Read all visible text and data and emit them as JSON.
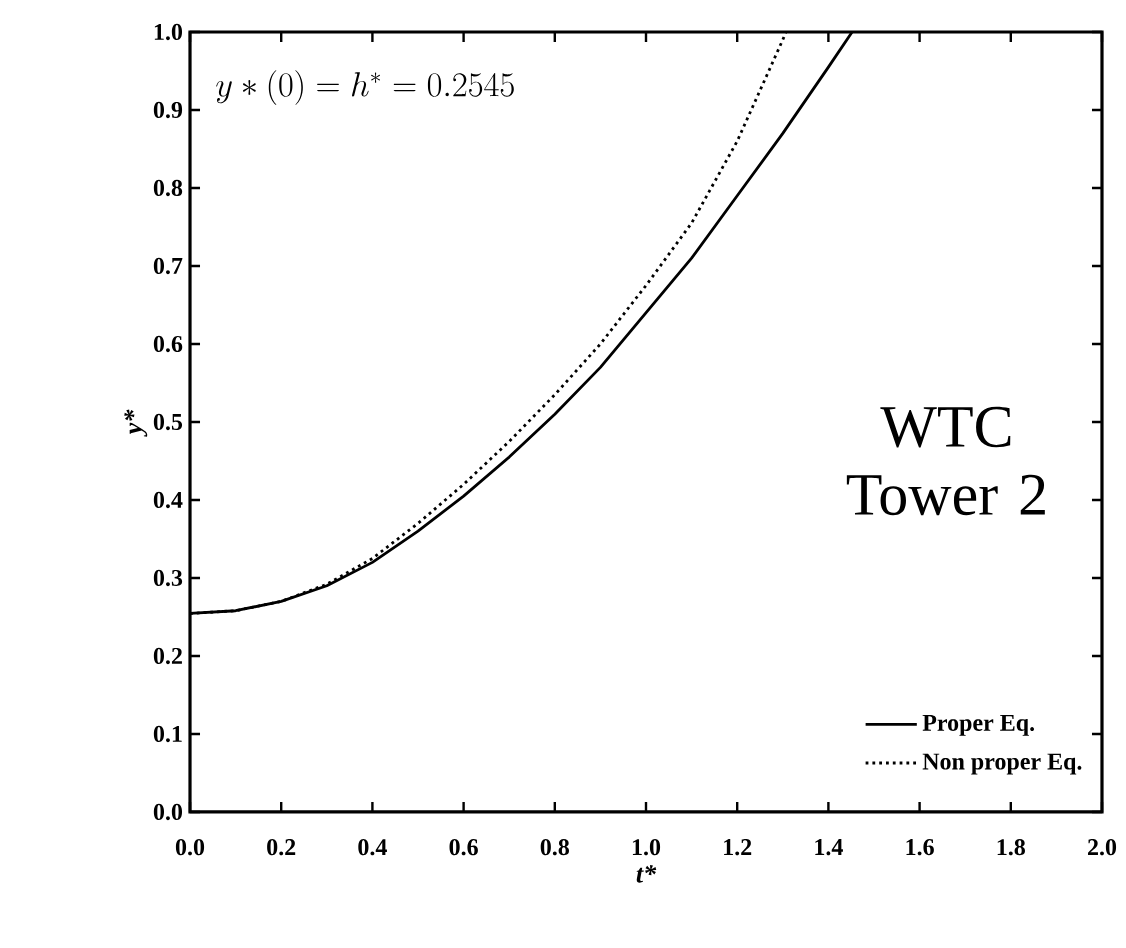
{
  "chart_data": {
    "type": "line",
    "xlabel": "t*",
    "ylabel": "y*",
    "xlim": [
      0,
      2.0
    ],
    "ylim": [
      0,
      1.0
    ],
    "xticks": [
      {
        "value": 0,
        "label": "0.0"
      },
      0.2,
      0.4,
      0.6,
      0.8,
      {
        "value": 1,
        "label": "1.0"
      },
      1.2,
      1.4,
      1.6,
      1.8,
      {
        "value": 2,
        "label": "2.0"
      }
    ],
    "yticks": [
      {
        "value": 0,
        "label": "0.0"
      },
      0.1,
      0.2,
      0.3,
      0.4,
      0.5,
      0.6,
      0.7,
      0.8,
      0.9,
      {
        "value": 1,
        "label": "1.0"
      }
    ],
    "legend": "bottom right",
    "annotations": [
      "y*(0) = h^{*} = 0.2545",
      "WTC Tower 2"
    ],
    "series": [
      {
        "name": "Proper Eq.",
        "color": "#000000",
        "line_style": "solid",
        "x": [
          0,
          0.1,
          0.2,
          0.3,
          0.4,
          0.5,
          0.6,
          0.7,
          0.8,
          0.9,
          1.0,
          1.1,
          1.2,
          1.3,
          1.4,
          1.452
        ],
        "values": [
          0.2545,
          0.258,
          0.27,
          0.29,
          0.32,
          0.36,
          0.405,
          0.455,
          0.51,
          0.57,
          0.64,
          0.71,
          0.79,
          0.87,
          0.955,
          1.0
        ]
      },
      {
        "name": "Non proper Eq.",
        "color": "#000000",
        "line_style": "dotted",
        "x": [
          0,
          0.1,
          0.2,
          0.3,
          0.4,
          0.5,
          0.6,
          0.7,
          0.8,
          0.9,
          1.0,
          1.1,
          1.2,
          1.3,
          1.307
        ],
        "values": [
          0.2545,
          0.258,
          0.27,
          0.292,
          0.325,
          0.37,
          0.42,
          0.475,
          0.535,
          0.6,
          0.675,
          0.755,
          0.86,
          0.99,
          1.0
        ]
      }
    ]
  }
}
